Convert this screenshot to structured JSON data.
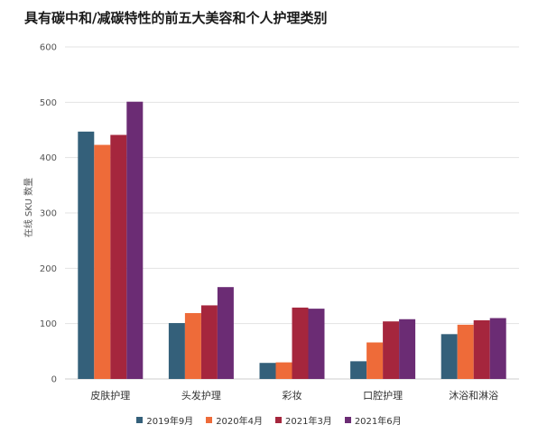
{
  "title": "具有碳中和/减碳特性的前五大美容和个人护理类别",
  "colors": {
    "series": [
      "#34607a",
      "#ee6b39",
      "#a5263d",
      "#6b2c74"
    ],
    "grid": "#e3e3e3",
    "axis_text": "#555555"
  },
  "chart_data": {
    "type": "bar",
    "title": "具有碳中和/减碳特性的前五大美容和个人护理类别",
    "xlabel": "",
    "ylabel": "在线 SKU 数量",
    "ylim": [
      0,
      600
    ],
    "yticks": [
      0,
      100,
      200,
      300,
      400,
      500,
      600
    ],
    "grid": true,
    "legend_position": "bottom",
    "categories": [
      "皮肤护理",
      "头发护理",
      "彩妆",
      "口腔护理",
      "沐浴和淋浴"
    ],
    "series": [
      {
        "name": "2019年9月",
        "values": [
          447,
          101,
          29,
          32,
          81
        ]
      },
      {
        "name": "2020年4月",
        "values": [
          423,
          119,
          30,
          66,
          98
        ]
      },
      {
        "name": "2021年3月",
        "values": [
          441,
          133,
          129,
          104,
          106
        ]
      },
      {
        "name": "2021年6月",
        "values": [
          501,
          166,
          127,
          108,
          110
        ]
      }
    ]
  }
}
